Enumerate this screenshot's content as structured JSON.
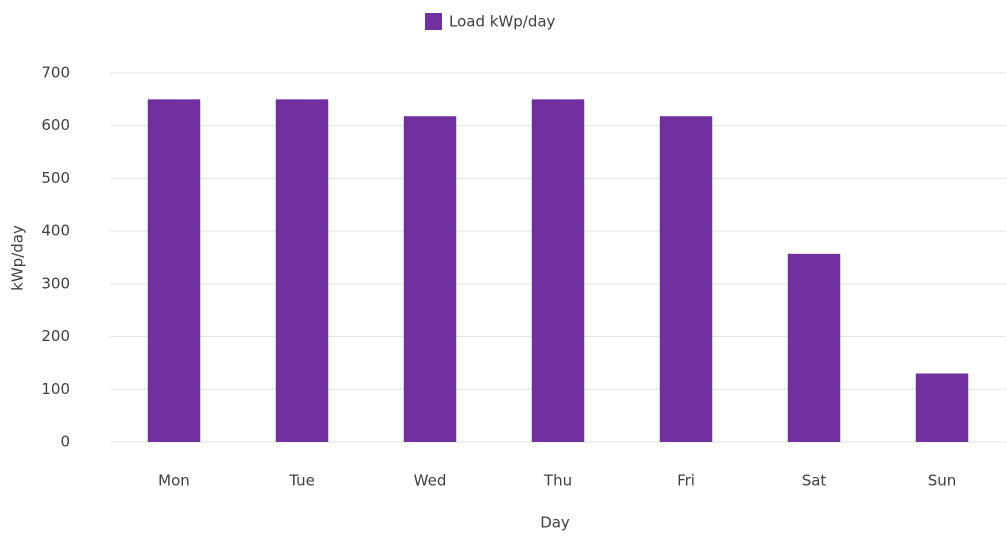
{
  "chart_data": {
    "type": "bar",
    "categories": [
      "Mon",
      "Tue",
      "Wed",
      "Thu",
      "Fri",
      "Sat",
      "Sun"
    ],
    "series": [
      {
        "name": "Load kWp/day",
        "color": "#7030a0",
        "values": [
          650,
          650,
          618,
          650,
          618,
          357,
          130
        ]
      }
    ],
    "x_label": "Day",
    "y_label": "kWp/day",
    "ylim": [
      0,
      700
    ],
    "yticks": [
      0,
      100,
      200,
      300,
      400,
      500,
      600,
      700
    ],
    "grid": true,
    "legend": "top"
  }
}
